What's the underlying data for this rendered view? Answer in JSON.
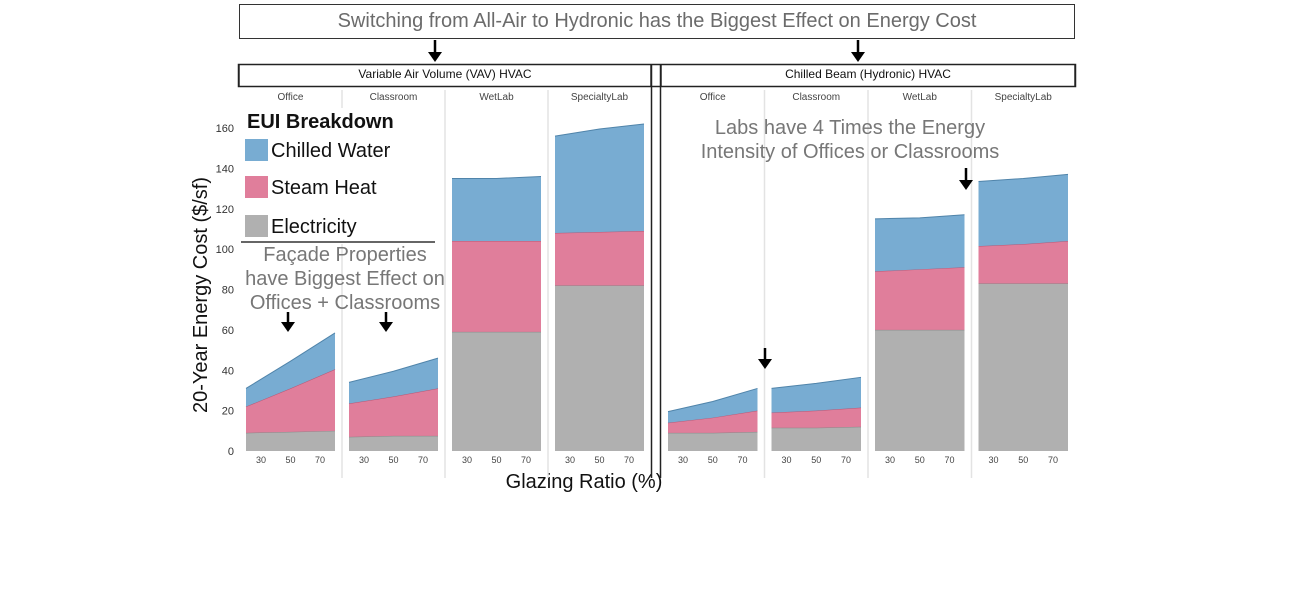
{
  "title": "Switching from All-Air to Hydronic has the Biggest Effect on Energy Cost",
  "annotations": {
    "facade": [
      "Façade Properties",
      "have Biggest Effect on",
      "Offices + Classrooms"
    ],
    "labs": [
      "Labs have 4 Times the Energy",
      "Intensity of Offices or Classrooms"
    ]
  },
  "legend": {
    "title": "EUI Breakdown",
    "items": [
      {
        "label": "Chilled Water",
        "color": "#78acd2"
      },
      {
        "label": "Steam Heat",
        "color": "#e07e9b"
      },
      {
        "label": "Electricity",
        "color": "#b0b0b0"
      }
    ]
  },
  "chart_data": {
    "type": "area",
    "stacked": true,
    "ylabel": "20-Year Energy Cost ($/sf)",
    "xlabel": "Glazing Ratio (%)",
    "yticks": [
      0,
      20,
      40,
      60,
      80,
      100,
      120,
      140,
      160
    ],
    "ylim": [
      0,
      165
    ],
    "x": [
      30,
      50,
      70
    ],
    "series_names": [
      "Electricity",
      "Steam Heat",
      "Chilled Water"
    ],
    "panels": [
      {
        "label": "Variable Air Volume (VAV) HVAC",
        "facets": [
          {
            "label": "Office",
            "electricity": [
              9,
              9.5,
              10
            ],
            "steam": [
              13,
              21.5,
              30.5
            ],
            "chilled": [
              9,
              13.5,
              18
            ]
          },
          {
            "label": "Classroom",
            "electricity": [
              7,
              7.5,
              7.5
            ],
            "steam": [
              16.5,
              19.5,
              23.5
            ],
            "chilled": [
              10.5,
              12.5,
              15
            ]
          },
          {
            "label": "WetLab",
            "electricity": [
              59,
              59,
              59
            ],
            "steam": [
              45,
              45,
              45
            ],
            "chilled": [
              31,
              31,
              32
            ]
          },
          {
            "label": "SpecialtyLab",
            "electricity": [
              82,
              82,
              82
            ],
            "steam": [
              26,
              26.5,
              27
            ],
            "chilled": [
              48,
              51,
              53
            ]
          }
        ]
      },
      {
        "label": "Chilled Beam (Hydronic) HVAC",
        "facets": [
          {
            "label": "Office",
            "electricity": [
              9,
              9,
              9.5
            ],
            "steam": [
              5,
              7.5,
              10.5
            ],
            "chilled": [
              5.5,
              8,
              11
            ]
          },
          {
            "label": "Classroom",
            "electricity": [
              11.5,
              11.5,
              12
            ],
            "steam": [
              7.5,
              8.5,
              9.5
            ],
            "chilled": [
              12,
              13.5,
              15
            ]
          },
          {
            "label": "WetLab",
            "electricity": [
              60,
              60,
              60
            ],
            "steam": [
              29,
              30,
              31
            ],
            "chilled": [
              26,
              25.5,
              26
            ]
          },
          {
            "label": "SpecialtyLab",
            "electricity": [
              83,
              83,
              83
            ],
            "steam": [
              18.5,
              19.5,
              21
            ],
            "chilled": [
              32,
              32.5,
              33
            ]
          }
        ]
      }
    ]
  }
}
